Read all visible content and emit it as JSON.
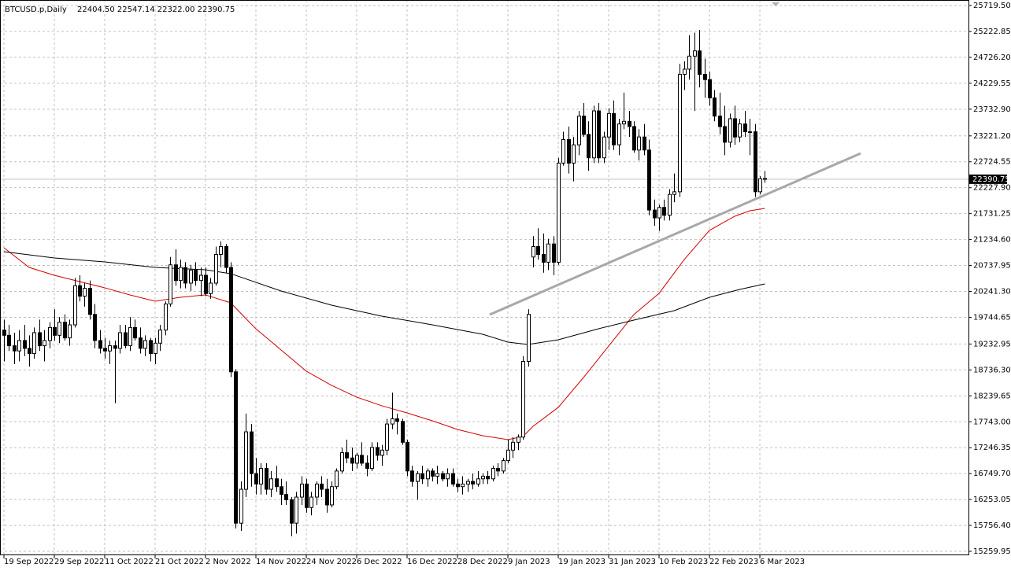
{
  "chart_data": {
    "type": "candlestick",
    "title": "BTCUSD.p,Daily",
    "ohlc_text": "22404.50 22547.14 22322.00 22390.75",
    "xlim": [
      -0.78,
      191.4
    ],
    "ylim": [
      15185,
      25825
    ],
    "grid": true,
    "up_color": "#ffffff",
    "down_color": "#000000",
    "outline_color": "#000000",
    "xticks": [
      {
        "value": 0,
        "label": "19 Sep 2022"
      },
      {
        "value": 10,
        "label": "29 Sep 2022"
      },
      {
        "value": 20,
        "label": "11 Oct 2022"
      },
      {
        "value": 30,
        "label": "21 Oct 2022"
      },
      {
        "value": 40,
        "label": "2 Nov 2022"
      },
      {
        "value": 50,
        "label": "14 Nov 2022"
      },
      {
        "value": 60,
        "label": "24 Nov 2022"
      },
      {
        "value": 70,
        "label": "6 Dec 2022"
      },
      {
        "value": 80,
        "label": "16 Dec 2022"
      },
      {
        "value": 90,
        "label": "28 Dec 2022"
      },
      {
        "value": 100,
        "label": "9 Jan 2023"
      },
      {
        "value": 110,
        "label": "19 Jan 2023"
      },
      {
        "value": 120,
        "label": "31 Jan 2023"
      },
      {
        "value": 130,
        "label": "10 Feb 2023"
      },
      {
        "value": 140,
        "label": "22 Feb 2023"
      },
      {
        "value": 150,
        "label": "6 Mar 2023"
      }
    ],
    "yticks": [
      {
        "value": 25719.5,
        "label": "25719.50"
      },
      25222.85,
      {
        "value": 24726.2,
        "label": "24726.20"
      },
      24229.55,
      {
        "value": 23732.9,
        "label": "23732.90"
      },
      {
        "value": 23221.2,
        "label": "23221.20"
      },
      22724.55,
      {
        "value": 22227.9,
        "label": "22227.90"
      },
      21731.25,
      {
        "value": 21234.6,
        "label": "21234.60"
      },
      20737.95,
      {
        "value": 20241.3,
        "label": "20241.30"
      },
      19744.65,
      19232.95,
      {
        "value": 18736.3,
        "label": "18736.30"
      },
      18239.65,
      {
        "value": 17743,
        "label": "17743.00"
      },
      17246.35,
      {
        "value": 16749.7,
        "label": "16749.70"
      },
      16253.05,
      {
        "value": 15756.4,
        "label": "15756.40"
      },
      15259.95
    ],
    "current_price": 22390.75,
    "ohlc": [
      [
        19500,
        19700,
        18900,
        19400
      ],
      [
        19400,
        19600,
        19100,
        19200
      ],
      [
        19200,
        19450,
        18850,
        19100
      ],
      [
        19100,
        19500,
        18900,
        19300
      ],
      [
        19300,
        19600,
        19000,
        19150
      ],
      [
        19150,
        19400,
        18800,
        19050
      ],
      [
        19050,
        19550,
        18950,
        19450
      ],
      [
        19450,
        19700,
        19100,
        19200
      ],
      [
        19200,
        19500,
        18900,
        19300
      ],
      [
        19300,
        19650,
        19150,
        19550
      ],
      [
        19550,
        19900,
        19300,
        19400
      ],
      [
        19400,
        19750,
        19250,
        19650
      ],
      [
        19650,
        19800,
        19300,
        19350
      ],
      [
        19350,
        19700,
        19200,
        19600
      ],
      [
        19600,
        20500,
        19550,
        20350
      ],
      [
        20350,
        20550,
        20050,
        20150
      ],
      [
        20150,
        20400,
        19950,
        20300
      ],
      [
        20300,
        20450,
        19700,
        19800
      ],
      [
        19800,
        20000,
        19150,
        19300
      ],
      [
        19300,
        19500,
        19050,
        19150
      ],
      [
        19150,
        19350,
        18950,
        19100
      ],
      [
        19100,
        19300,
        18850,
        19200
      ],
      [
        19200,
        19300,
        18100,
        19150
      ],
      [
        19150,
        19600,
        19050,
        19450
      ],
      [
        19450,
        19600,
        19150,
        19200
      ],
      [
        19200,
        19750,
        19100,
        19550
      ],
      [
        19550,
        19700,
        19300,
        19350
      ],
      [
        19350,
        19550,
        19050,
        19150
      ],
      [
        19150,
        19400,
        19000,
        19300
      ],
      [
        19300,
        19350,
        18900,
        19050
      ],
      [
        19050,
        19350,
        18850,
        19250
      ],
      [
        19250,
        19600,
        19100,
        19500
      ],
      [
        19500,
        20050,
        19400,
        20000
      ],
      [
        20000,
        20900,
        19950,
        20750
      ],
      [
        20750,
        21050,
        20350,
        20450
      ],
      [
        20450,
        20850,
        20300,
        20700
      ],
      [
        20700,
        20800,
        20300,
        20400
      ],
      [
        20400,
        20750,
        20250,
        20650
      ],
      [
        20650,
        20800,
        20350,
        20450
      ],
      [
        20450,
        20700,
        20150,
        20550
      ],
      [
        20550,
        20700,
        20150,
        20200
      ],
      [
        20200,
        20500,
        20100,
        20400
      ],
      [
        20400,
        21100,
        20350,
        20950
      ],
      [
        20950,
        21200,
        20700,
        21100
      ],
      [
        21100,
        21150,
        20600,
        20700
      ],
      [
        20700,
        20800,
        18600,
        18700
      ],
      [
        18700,
        18750,
        15700,
        15800
      ],
      [
        15800,
        16600,
        15650,
        16450
      ],
      [
        16450,
        17900,
        16300,
        17550
      ],
      [
        17550,
        17700,
        16500,
        16750
      ],
      [
        16750,
        17050,
        16350,
        16550
      ],
      [
        16550,
        16950,
        16350,
        16850
      ],
      [
        16850,
        16950,
        16350,
        16450
      ],
      [
        16450,
        16800,
        16300,
        16650
      ],
      [
        16650,
        16900,
        16400,
        16500
      ],
      [
        16500,
        16650,
        16150,
        16350
      ],
      [
        16350,
        16600,
        16150,
        16250
      ],
      [
        16250,
        16300,
        15550,
        15800
      ],
      [
        15800,
        16400,
        15600,
        16300
      ],
      [
        16300,
        16700,
        16150,
        16550
      ],
      [
        16550,
        16650,
        16000,
        16100
      ],
      [
        16100,
        16400,
        15950,
        16300
      ],
      [
        16300,
        16600,
        16150,
        16550
      ],
      [
        16550,
        16700,
        16300,
        16450
      ],
      [
        16450,
        16650,
        16000,
        16150
      ],
      [
        16150,
        16600,
        16100,
        16500
      ],
      [
        16500,
        16850,
        16450,
        16800
      ],
      [
        16800,
        17250,
        16750,
        17150
      ],
      [
        17150,
        17400,
        16950,
        17050
      ],
      [
        17050,
        17250,
        16800,
        16950
      ],
      [
        16950,
        17150,
        16850,
        17100
      ],
      [
        17100,
        17350,
        16900,
        16950
      ],
      [
        16950,
        17100,
        16700,
        16850
      ],
      [
        16850,
        17350,
        16800,
        17250
      ],
      [
        17250,
        17350,
        17000,
        17100
      ],
      [
        17100,
        17300,
        16900,
        17200
      ],
      [
        17200,
        17800,
        17100,
        17700
      ],
      [
        17700,
        18300,
        17600,
        17800
      ],
      [
        17800,
        17900,
        17500,
        17750
      ],
      [
        17750,
        17800,
        17300,
        17350
      ],
      [
        17350,
        17400,
        16700,
        16800
      ],
      [
        16800,
        16900,
        16500,
        16600
      ],
      [
        16600,
        16800,
        16250,
        16750
      ],
      [
        16750,
        16900,
        16550,
        16650
      ],
      [
        16650,
        16850,
        16500,
        16800
      ],
      [
        16800,
        16850,
        16600,
        16700
      ],
      [
        16700,
        16900,
        16550,
        16750
      ],
      [
        16750,
        16800,
        16600,
        16650
      ],
      [
        16650,
        16850,
        16500,
        16750
      ],
      [
        16750,
        16850,
        16500,
        16550
      ],
      [
        16550,
        16650,
        16400,
        16500
      ],
      [
        16500,
        16700,
        16350,
        16550
      ],
      [
        16550,
        16650,
        16400,
        16600
      ],
      [
        16600,
        16750,
        16450,
        16550
      ],
      [
        16550,
        16800,
        16500,
        16650
      ],
      [
        16650,
        16750,
        16550,
        16700
      ],
      [
        16700,
        16800,
        16550,
        16650
      ],
      [
        16650,
        16900,
        16600,
        16850
      ],
      [
        16850,
        16950,
        16700,
        16800
      ],
      [
        16800,
        17050,
        16750,
        17000
      ],
      [
        17000,
        17400,
        16950,
        17200
      ],
      [
        17200,
        17450,
        17050,
        17350
      ],
      [
        17350,
        17500,
        17200,
        17450
      ],
      [
        17450,
        19000,
        17400,
        18900
      ],
      [
        18900,
        19900,
        18800,
        19800
      ],
      [
        20900,
        21300,
        20700,
        21100
      ],
      [
        21100,
        21450,
        20850,
        20950
      ],
      [
        20950,
        21350,
        20600,
        20800
      ],
      [
        20800,
        21250,
        20650,
        21150
      ],
      [
        21150,
        21300,
        20550,
        20800
      ],
      [
        20800,
        22800,
        20750,
        22700
      ],
      [
        22700,
        23300,
        22650,
        23150
      ],
      [
        23150,
        23400,
        22500,
        22700
      ],
      [
        22700,
        23200,
        22350,
        23050
      ],
      [
        23050,
        23700,
        22850,
        23600
      ],
      [
        23600,
        23850,
        23200,
        23250
      ],
      [
        23250,
        23500,
        22550,
        22800
      ],
      [
        22800,
        23800,
        22700,
        23700
      ],
      [
        23700,
        23850,
        22700,
        22800
      ],
      [
        22800,
        23300,
        22700,
        23200
      ],
      [
        23200,
        23750,
        22950,
        23650
      ],
      [
        23650,
        23900,
        22950,
        23050
      ],
      [
        23050,
        23550,
        22850,
        23450
      ],
      [
        23450,
        24050,
        23350,
        23500
      ],
      [
        23500,
        23700,
        23200,
        23400
      ],
      [
        23400,
        23500,
        22900,
        22950
      ],
      [
        22950,
        23350,
        22750,
        23200
      ],
      [
        23200,
        23450,
        22850,
        22950
      ],
      [
        22950,
        23150,
        21700,
        21800
      ],
      [
        21800,
        22000,
        21500,
        21650
      ],
      [
        21650,
        21900,
        21400,
        21850
      ],
      [
        21850,
        22000,
        21600,
        21700
      ],
      [
        21700,
        22200,
        21600,
        22100
      ],
      [
        22100,
        22500,
        21950,
        22150
      ],
      [
        22150,
        24600,
        22050,
        24400
      ],
      [
        24400,
        24650,
        24100,
        24500
      ],
      [
        24500,
        25150,
        24300,
        24750
      ],
      [
        24750,
        25200,
        23700,
        24850
      ],
      [
        24850,
        25250,
        24150,
        24400
      ],
      [
        24400,
        24700,
        23950,
        24300
      ],
      [
        24300,
        24450,
        23800,
        23950
      ],
      [
        23950,
        24100,
        23500,
        23600
      ],
      [
        23600,
        24050,
        23250,
        23400
      ],
      [
        23400,
        23800,
        22850,
        23100
      ],
      [
        23100,
        23650,
        23000,
        23550
      ],
      [
        23550,
        23800,
        23050,
        23200
      ],
      [
        23200,
        23550,
        23100,
        23450
      ],
      [
        23450,
        23700,
        23200,
        23300
      ],
      [
        23300,
        23550,
        22850,
        23300
      ],
      [
        23300,
        23450,
        22050,
        22150
      ],
      [
        22150,
        22450,
        22100,
        22400
      ],
      [
        22404.5,
        22547.14,
        22322,
        22390.75
      ]
    ],
    "lines": [
      {
        "color": "#d40000",
        "x": [
          0,
          5,
          10,
          15,
          20,
          25,
          30,
          35,
          40,
          45,
          48,
          50,
          55,
          60,
          65,
          70,
          75,
          80,
          85,
          90,
          95,
          100,
          103,
          105,
          110,
          115,
          120,
          125,
          130,
          135,
          140,
          145,
          148,
          151
        ],
        "values": [
          21078,
          20701,
          20550,
          20430,
          20310,
          20174,
          20053,
          20128,
          20174,
          20023,
          19721,
          19526,
          19119,
          18712,
          18441,
          18215,
          18049,
          17913,
          17762,
          17597,
          17476,
          17401,
          17461,
          17657,
          18019,
          18591,
          19194,
          19797,
          20204,
          20852,
          21410,
          21681,
          21786,
          21831
        ]
      },
      {
        "color": "#000000",
        "x": [
          0,
          10,
          20,
          30,
          40,
          45,
          55,
          65,
          75,
          85,
          95,
          100,
          104,
          110,
          118,
          125,
          133,
          140,
          146,
          151
        ],
        "values": [
          21003,
          20882,
          20807,
          20701,
          20656,
          20581,
          20249,
          19978,
          19767,
          19601,
          19420,
          19270,
          19224,
          19315,
          19526,
          19691,
          19872,
          20128,
          20279,
          20385
        ]
      }
    ],
    "trendline": {
      "color": "#a8a8a8",
      "x": [
        96.4,
        170
      ],
      "values": [
        19797,
        22886
      ]
    }
  }
}
